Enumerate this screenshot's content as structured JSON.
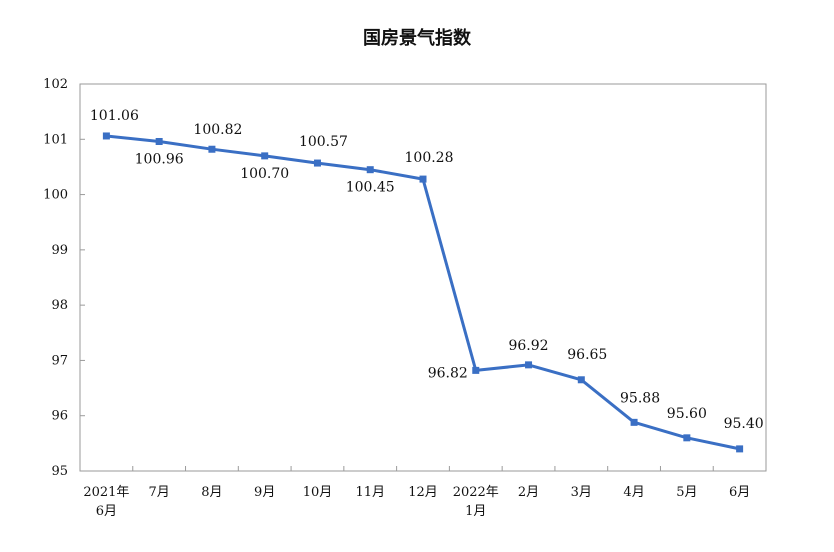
{
  "chart_data": {
    "type": "line",
    "title": "国房景气指数",
    "xlabel": "",
    "ylabel": "",
    "ylim": [
      95,
      102
    ],
    "yticks": [
      95,
      96,
      97,
      98,
      99,
      100,
      101,
      102
    ],
    "grid": false,
    "legend": "none",
    "categories": [
      [
        "2021年",
        "6月"
      ],
      [
        "7月"
      ],
      [
        "8月"
      ],
      [
        "9月"
      ],
      [
        "10月"
      ],
      [
        "11月"
      ],
      [
        "12月"
      ],
      [
        "2022年",
        "1月"
      ],
      [
        "2月"
      ],
      [
        "3月"
      ],
      [
        "4月"
      ],
      [
        "5月"
      ],
      [
        "6月"
      ]
    ],
    "series": [
      {
        "values": [
          101.06,
          100.96,
          100.82,
          100.7,
          100.57,
          100.45,
          100.28,
          96.82,
          96.92,
          96.65,
          95.88,
          95.6,
          95.4
        ],
        "labels": [
          "101.06",
          "100.96",
          "100.82",
          "100.70",
          "100.57",
          "100.45",
          "100.28",
          "96.82",
          "96.92",
          "96.65",
          "95.88",
          "95.60",
          "95.40"
        ],
        "color": "#3A6FC4"
      }
    ]
  }
}
